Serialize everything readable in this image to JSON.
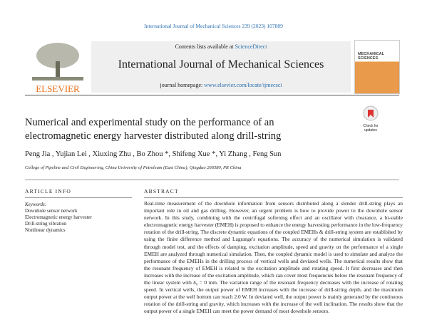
{
  "journal_reference": "International Journal of Mechanical Sciences 239 (2023) 107889",
  "header": {
    "contents_prefix": "Contents lists available at",
    "contents_link": "ScienceDirect",
    "journal_title": "International Journal of Mechanical Sciences",
    "homepage_label": "journal homepage:",
    "homepage_url": "www.elsevier.com/locate/ijmecsci",
    "publisher": "ELSEVIER",
    "cover_title": "MECHANICAL SCIENCES",
    "check_for_updates": "Check for updates"
  },
  "article": {
    "title_lines": [
      "Numerical and experimental study on the performance of an",
      "electromagnetic energy harvester distributed along drill-string"
    ],
    "authors": "Peng Jia , Yujian Lei , Xiuxing Zhu , Bo Zhou *, Shifeng Xue *, Yi Zhang , Feng Sun",
    "affiliation": "College of Pipeline and Civil Engineering, China University of Petroleum (East China), Qingdao 266580, PR China"
  },
  "article_info": {
    "heading": "ARTICLE INFO",
    "keywords_label": "Keywords:",
    "keywords": [
      "Downhole sensor network",
      "Electromagnetic energy harvester",
      "Drill-string vibration",
      "Nonlinear dynamics"
    ]
  },
  "abstract": {
    "heading": "ABSTRACT",
    "text": "Real-time measurement of the downhole information from sensors distributed along a slender drill-string plays an important role in oil and gas drilling. However, an urgent problem is how to provide power to the downhole sensor network. In this study, combining with the centrifugal softening effect and an oscillator with clearance, a bi-stable electromagnetic energy harvester (EMEH) is proposed to enhance the energy harvesting performance in the low-frequency rotation of the drill-string. The discrete dynamic equations of the coupled EMEHs & drill-string system are established by using the finite difference method and Lagrange's equations. The accuracy of the numerical simulation is validated through model test, and the effects of damping, excitation amplitude, speed and gravity on the performance of a single EMEH are analyzed through numerical simulation. Then, the coupled dynamic model is used to simulate and analyze the performance of the EMEHs in the drilling process of vertical wells and deviated wells. The numerical results show that the resonant frequency of EMEH is related to the excitation amplitude and rotating speed. It first decreases and then increases with the increase of the excitation amplitude, which can cover most frequencies below the resonant frequency of the linear system with δ₀ = 0 mm. The variation range of the resonant frequency decreases with the increase of rotating speed. In vertical wells, the output power of EMEH increases with the increase of drill-string depth, and the maximum output power at the well bottom can reach 2.0 W. In deviated well, the output power is mainly generated by the continuous rotation of the drill-string and gravity, which increases with the increase of the well inclination. The results show that the output power of a single EMEH can meet the power demand of most downhole sensors."
  }
}
